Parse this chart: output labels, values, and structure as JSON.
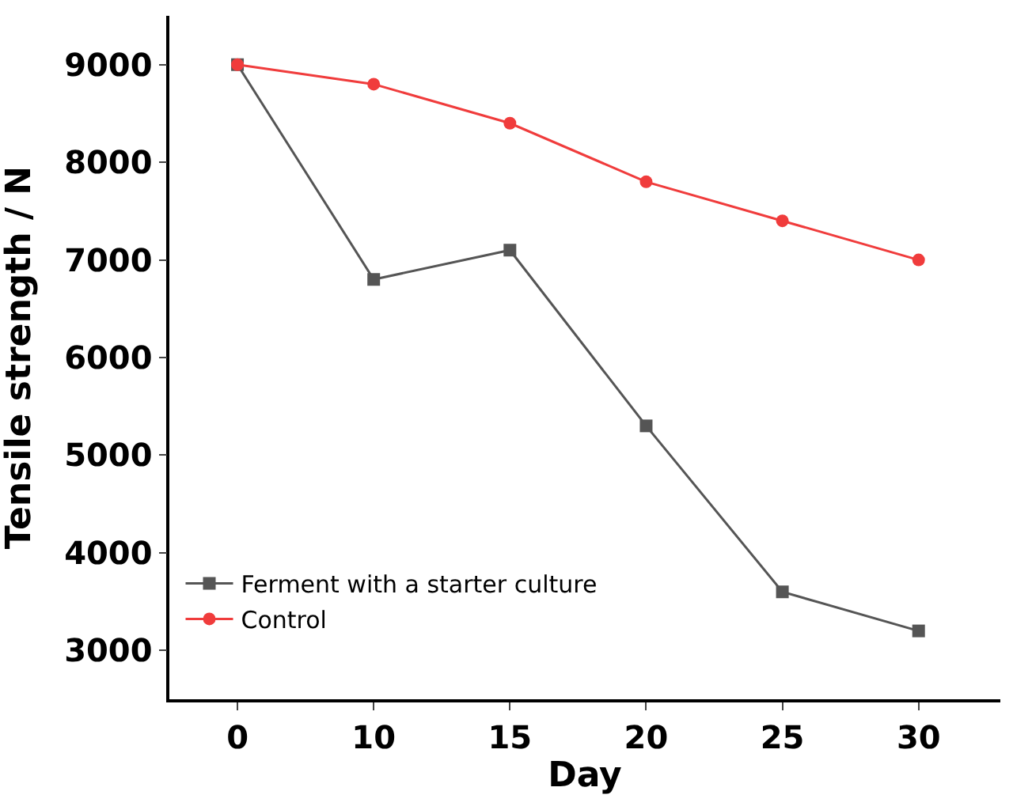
{
  "chart_data": {
    "type": "line",
    "xlabel": "Day",
    "ylabel": "Tensile strength / N",
    "categories": [
      "0",
      "10",
      "15",
      "20",
      "25",
      "30"
    ],
    "series": [
      {
        "name": "Ferment with a starter culture",
        "color": "#555555",
        "marker": "square",
        "values": [
          9000,
          6800,
          7100,
          5300,
          3600,
          3200
        ]
      },
      {
        "name": "Control",
        "color": "#f03c3c",
        "marker": "circle",
        "values": [
          9000,
          8800,
          8400,
          7800,
          7400,
          7000
        ]
      }
    ],
    "ylim": [
      2500,
      9500
    ],
    "yticks": [
      3000,
      4000,
      5000,
      6000,
      7000,
      8000,
      9000
    ],
    "legend": "bottom left"
  }
}
